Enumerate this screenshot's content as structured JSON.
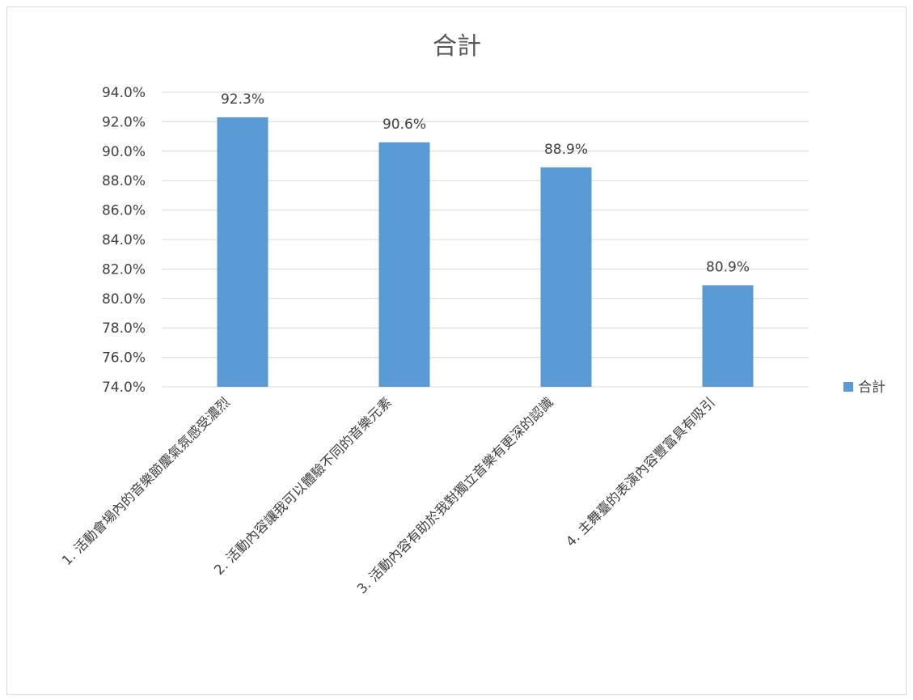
{
  "chart_data": {
    "type": "bar",
    "title": "合計",
    "xlabel": "",
    "ylabel": "",
    "categories": [
      "1. 活動會場內的音樂節慶氣氛感受濃烈",
      "2. 活動內容讓我可以體驗不同的音樂元素",
      "3. 活動內容有助於我對獨立音樂有更深的認識",
      "4. 主舞臺的表演內容豐富具有吸引"
    ],
    "series": [
      {
        "name": "合計",
        "values": [
          0.923,
          0.906,
          0.889,
          0.809
        ],
        "labels": [
          "92.3%",
          "90.6%",
          "88.9%",
          "80.9%"
        ]
      }
    ],
    "ylim": [
      0.74,
      0.94
    ],
    "yticks": [
      "74.0%",
      "76.0%",
      "78.0%",
      "80.0%",
      "82.0%",
      "84.0%",
      "86.0%",
      "88.0%",
      "90.0%",
      "92.0%",
      "94.0%"
    ],
    "grid": true,
    "legend": "right",
    "colors": {
      "bar": "#5b9bd5",
      "grid": "#d9d9d9",
      "text": "#404040",
      "title": "#595959"
    }
  }
}
